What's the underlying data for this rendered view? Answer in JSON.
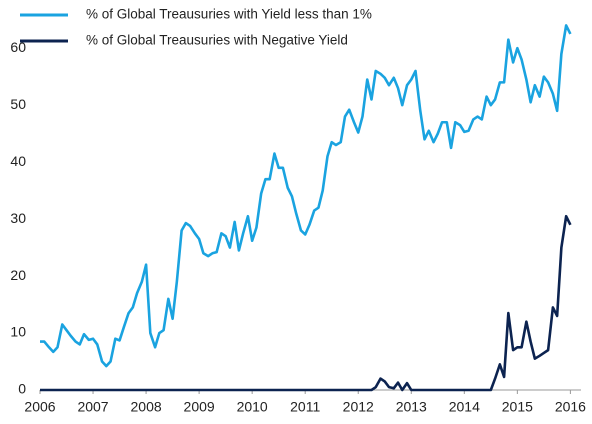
{
  "chart_data": {
    "type": "line",
    "x": [
      2006,
      2006.08,
      2006.17,
      2006.25,
      2006.33,
      2006.42,
      2006.5,
      2006.58,
      2006.67,
      2006.75,
      2006.83,
      2006.92,
      2007,
      2007.08,
      2007.17,
      2007.25,
      2007.33,
      2007.42,
      2007.5,
      2007.58,
      2007.67,
      2007.75,
      2007.83,
      2007.92,
      2008,
      2008.08,
      2008.17,
      2008.25,
      2008.33,
      2008.42,
      2008.5,
      2008.58,
      2008.67,
      2008.75,
      2008.83,
      2008.92,
      2009,
      2009.08,
      2009.17,
      2009.25,
      2009.33,
      2009.42,
      2009.5,
      2009.58,
      2009.67,
      2009.75,
      2009.83,
      2009.92,
      2010,
      2010.08,
      2010.17,
      2010.25,
      2010.33,
      2010.42,
      2010.5,
      2010.58,
      2010.67,
      2010.75,
      2010.83,
      2010.92,
      2011,
      2011.08,
      2011.17,
      2011.25,
      2011.33,
      2011.42,
      2011.5,
      2011.58,
      2011.67,
      2011.75,
      2011.83,
      2011.92,
      2012,
      2012.08,
      2012.17,
      2012.25,
      2012.33,
      2012.42,
      2012.5,
      2012.58,
      2012.67,
      2012.75,
      2012.83,
      2012.92,
      2013,
      2013.08,
      2013.17,
      2013.25,
      2013.33,
      2013.42,
      2013.5,
      2013.58,
      2013.67,
      2013.75,
      2013.83,
      2013.92,
      2014,
      2014.08,
      2014.17,
      2014.25,
      2014.33,
      2014.42,
      2014.5,
      2014.58,
      2014.67,
      2014.75,
      2014.83,
      2014.92,
      2015,
      2015.08,
      2015.17,
      2015.25,
      2015.33,
      2015.42,
      2015.5,
      2015.58,
      2015.67,
      2015.75,
      2015.83,
      2015.92,
      2016
    ],
    "series": [
      {
        "name": "% of Global Treausuries with Yield less than 1%",
        "color": "#1aa3e0",
        "values": [
          8.5,
          8.5,
          7.5,
          6.7,
          7.5,
          11.5,
          10.5,
          9.5,
          8.5,
          8,
          9.8,
          8.8,
          9,
          8,
          5,
          4.2,
          5,
          9,
          8.7,
          11,
          13.5,
          14.5,
          17,
          19,
          22,
          10,
          7.5,
          10,
          10.5,
          16,
          12.5,
          19,
          28,
          29.3,
          28.8,
          27.5,
          26.5,
          24,
          23.5,
          24,
          24.2,
          27.5,
          27,
          25,
          29.5,
          24.5,
          27.5,
          30.5,
          26.2,
          28.5,
          34.5,
          37,
          37,
          41.5,
          39,
          39,
          35.5,
          34,
          31,
          28,
          27.3,
          29,
          31.5,
          32,
          35,
          41,
          43.5,
          43,
          43.5,
          48,
          49.2,
          47,
          45.2,
          48,
          54.5,
          51,
          56,
          55.5,
          54.8,
          53.5,
          54.8,
          53,
          50,
          53.5,
          54.5,
          56,
          49,
          44,
          45.5,
          43.5,
          45,
          47,
          47,
          42.5,
          47,
          46.5,
          45.3,
          45.5,
          47.5,
          48,
          47.5,
          51.5,
          50,
          51,
          54,
          54,
          61.5,
          57.5,
          60,
          58,
          54.5,
          50.5,
          53.5,
          51.5,
          55,
          54,
          52,
          49,
          59,
          64,
          62.5
        ]
      },
      {
        "name": "% of Global Treausuries with Negative Yield",
        "color": "#0c2350",
        "values": [
          0,
          0,
          0,
          0,
          0,
          0,
          0,
          0,
          0,
          0,
          0,
          0,
          0,
          0,
          0,
          0,
          0,
          0,
          0,
          0,
          0,
          0,
          0,
          0,
          0,
          0,
          0,
          0,
          0,
          0,
          0,
          0,
          0,
          0,
          0,
          0,
          0,
          0,
          0,
          0,
          0,
          0,
          0,
          0,
          0,
          0,
          0,
          0,
          0,
          0,
          0,
          0,
          0,
          0,
          0,
          0,
          0,
          0,
          0,
          0,
          0,
          0,
          0,
          0,
          0,
          0,
          0,
          0,
          0,
          0,
          0,
          0,
          0,
          0,
          0,
          0,
          0.5,
          2,
          1.5,
          0.5,
          0.3,
          1.3,
          0,
          1.2,
          0,
          0,
          0,
          0,
          0,
          0,
          0,
          0,
          0,
          0,
          0,
          0,
          0,
          0,
          0,
          0,
          0,
          0,
          0,
          2,
          4.5,
          2.3,
          13.5,
          7,
          7.5,
          7.5,
          12,
          8.5,
          5.5,
          6,
          6.5,
          7,
          14.5,
          13,
          25,
          30.5,
          29
        ]
      }
    ],
    "xlim": [
      2006,
      2016.2
    ],
    "xticks": [
      2006,
      2007,
      2008,
      2009,
      2010,
      2011,
      2012,
      2013,
      2014,
      2015,
      2016
    ],
    "ylim": [
      0,
      66
    ],
    "yticks": [
      0,
      10,
      20,
      30,
      40,
      50,
      60
    ],
    "grid": false,
    "legend": "top-left"
  }
}
